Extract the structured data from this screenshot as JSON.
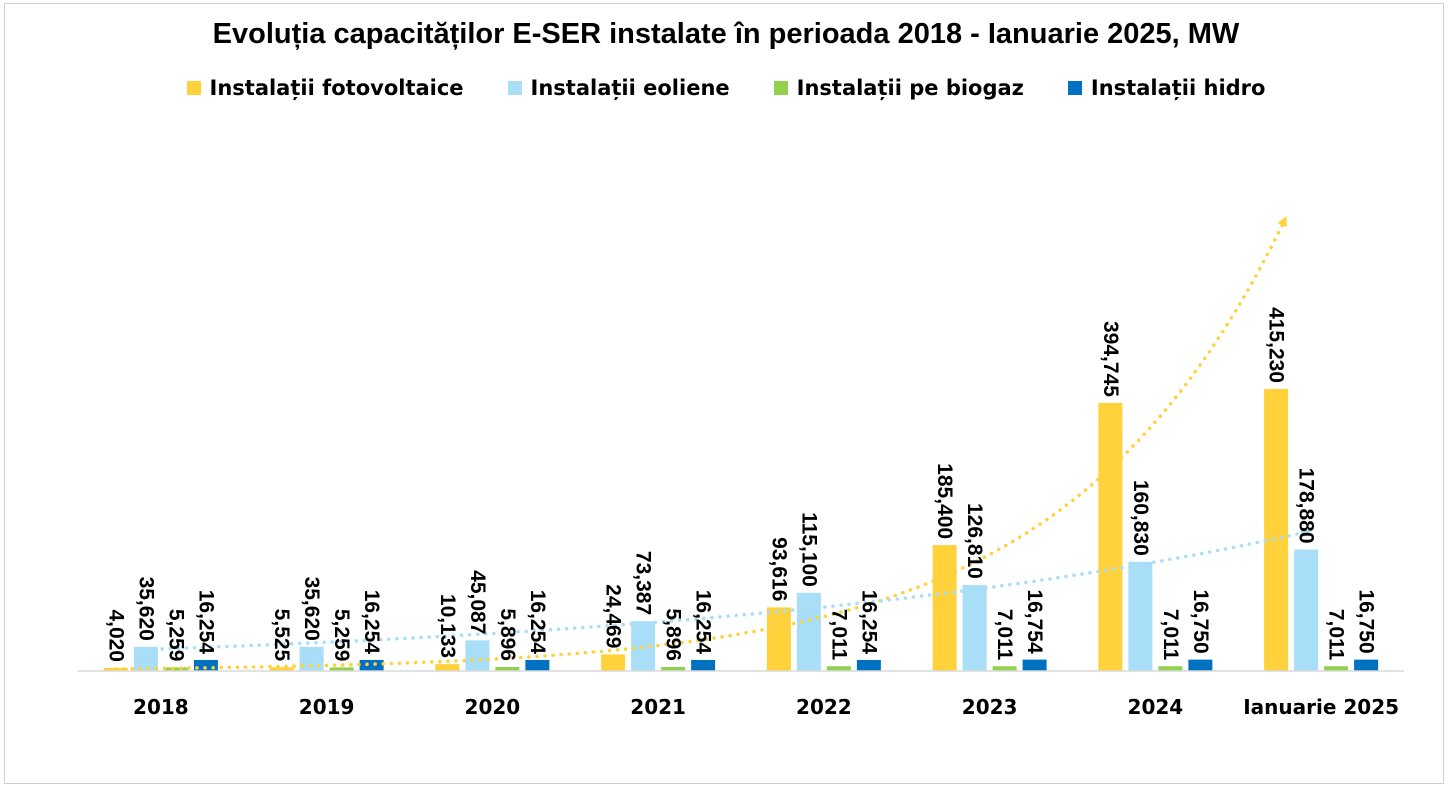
{
  "chart_data": {
    "type": "bar",
    "title": "Evoluția capacităților E-SER instalate în perioada 2018 - Ianuarie 2025, MW",
    "xlabel": "",
    "ylabel": "",
    "categories": [
      "2018",
      "2019",
      "2020",
      "2021",
      "2022",
      "2023",
      "2024",
      "Ianuarie 2025"
    ],
    "series": [
      {
        "name": "Instalații fotovoltaice",
        "color": "#FFD13B",
        "values": [
          4020,
          5525,
          10133,
          24469,
          93616,
          185400,
          394745,
          415230
        ],
        "labels": [
          "4,020",
          "5,525",
          "10,133",
          "24,469",
          "93,616",
          "185,400",
          "394,745",
          "415,230"
        ],
        "trendline": "exponential"
      },
      {
        "name": "Instalații eoliene",
        "color": "#A9DEF9",
        "values": [
          35620,
          35620,
          45087,
          73387,
          115100,
          126810,
          160830,
          178880
        ],
        "labels": [
          "35,620",
          "35,620",
          "45,087",
          "73,387",
          "115,100",
          "126,810",
          "160,830",
          "178,880"
        ],
        "trendline": "exponential"
      },
      {
        "name": "Instalații pe biogaz",
        "color": "#92D050",
        "values": [
          5259,
          5259,
          5896,
          5896,
          7011,
          7011,
          7011,
          7011
        ],
        "labels": [
          "5,259",
          "5,259",
          "5,896",
          "5,896",
          "7,011",
          "7,011",
          "7,011",
          "7,011"
        ]
      },
      {
        "name": "Instalații hidro",
        "color": "#0070C0",
        "values": [
          16254,
          16254,
          16254,
          16254,
          16254,
          16754,
          16750,
          16750
        ],
        "labels": [
          "16,254",
          "16,254",
          "16,254",
          "16,254",
          "16,254",
          "16,754",
          "16,750",
          "16,750"
        ]
      }
    ],
    "legend_position": "top",
    "grid": false,
    "y_axis_visible": false
  }
}
